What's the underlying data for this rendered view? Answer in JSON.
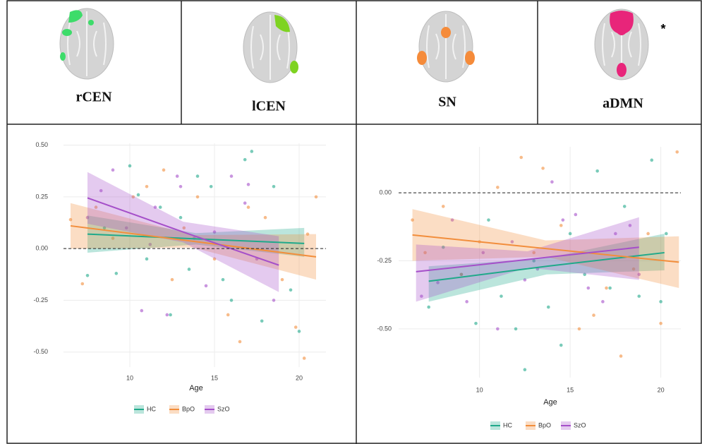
{
  "header": {
    "networks": [
      "rCEN",
      "lCEN",
      "SN",
      "aDMN"
    ],
    "note": "*"
  },
  "chart_data": [
    {
      "type": "scatter",
      "x_label": "Age",
      "xlim": [
        5.5,
        22
      ],
      "ylim": [
        -0.6,
        0.55
      ],
      "xticks": [
        10,
        15,
        20
      ],
      "yticks": [
        {
          "value": -0.5,
          "label": "-0.50"
        },
        {
          "value": -0.25,
          "label": "-0.25"
        },
        {
          "value": 0,
          "label": "0.00"
        },
        {
          "value": 0.25,
          "label": "0.25"
        },
        {
          "value": 0.5,
          "label": "0.50"
        }
      ],
      "grid": true,
      "reference_line": 0,
      "series": [
        {
          "name": "HC",
          "color": "#1fa98a",
          "x": [
            7.5,
            8.5,
            9.2,
            10,
            10.5,
            11,
            11.8,
            12.4,
            13,
            13.5,
            14,
            14.8,
            15.5,
            16,
            16.8,
            17.2,
            17.8,
            18.5,
            19.5,
            20
          ],
          "values": [
            -0.13,
            0.1,
            -0.12,
            0.4,
            0.26,
            -0.05,
            0.2,
            -0.32,
            0.15,
            -0.1,
            0.35,
            0.3,
            -0.15,
            -0.25,
            0.43,
            0.47,
            -0.35,
            0.3,
            -0.2,
            -0.4
          ],
          "fit": {
            "x": [
              7.5,
              13.9,
              20.3
            ],
            "values": [
              0.07,
              0.047,
              0.025
            ],
            "lower": [
              -0.02,
              0.02,
              -0.04
            ],
            "upper": [
              0.16,
              0.075,
              0.1
            ]
          }
        },
        {
          "name": "BpO",
          "color": "#f28e3c",
          "x": [
            6.5,
            7.2,
            8,
            9,
            10.2,
            11,
            12,
            12.5,
            13.2,
            14,
            15,
            15.8,
            16.5,
            17,
            18,
            19,
            19.8,
            20.5,
            21,
            20.3
          ],
          "values": [
            0.14,
            -0.17,
            0.2,
            0.05,
            0.25,
            0.3,
            0.38,
            -0.15,
            0.1,
            0.25,
            -0.05,
            -0.32,
            -0.45,
            0.2,
            0.15,
            -0.15,
            -0.38,
            0.07,
            0.25,
            -0.53
          ],
          "fit": {
            "x": [
              6.5,
              13.75,
              21
            ],
            "values": [
              0.11,
              0.035,
              -0.04
            ],
            "lower": [
              0.0,
              0.005,
              -0.15
            ],
            "upper": [
              0.22,
              0.065,
              0.07
            ]
          }
        },
        {
          "name": "SzO",
          "color": "#a54fc9",
          "x": [
            7.5,
            8.3,
            9,
            9.8,
            10.7,
            11.5,
            12.2,
            13,
            13.8,
            14.5,
            15,
            16,
            16.8,
            17.5,
            18.5,
            12.8,
            17,
            11.2
          ],
          "values": [
            0.15,
            0.28,
            0.38,
            0.1,
            -0.3,
            0.2,
            -0.32,
            0.3,
            0.05,
            -0.18,
            0.08,
            0.35,
            0.22,
            -0.05,
            -0.25,
            0.35,
            0.31,
            0.02
          ],
          "fit": {
            "x": [
              7.5,
              13.15,
              18.8
            ],
            "values": [
              0.245,
              0.08,
              -0.08
            ],
            "lower": [
              0.12,
              0.03,
              -0.21
            ],
            "upper": [
              0.37,
              0.13,
              0.06
            ]
          }
        }
      ]
    },
    {
      "type": "scatter",
      "x_label": "Age",
      "xlim": [
        5.5,
        22
      ],
      "ylim": [
        -0.7,
        0.2
      ],
      "xticks": [
        10,
        15,
        20
      ],
      "yticks": [
        {
          "value": -0.5,
          "label": "-0.50"
        },
        {
          "value": -0.25,
          "label": "-0.25"
        },
        {
          "value": 0,
          "label": "0.00"
        }
      ],
      "grid": true,
      "reference_line": 0,
      "series": [
        {
          "name": "HC",
          "color": "#1fa98a",
          "x": [
            7.2,
            8,
            9,
            9.8,
            10.5,
            11.2,
            12,
            12.5,
            13,
            13.8,
            14.5,
            15,
            15.8,
            16.5,
            17.2,
            18,
            18.8,
            19.5,
            20,
            20.3
          ],
          "values": [
            -0.42,
            -0.2,
            -0.3,
            -0.48,
            -0.1,
            -0.38,
            -0.5,
            -0.65,
            -0.25,
            -0.42,
            -0.56,
            -0.15,
            -0.3,
            0.08,
            -0.35,
            -0.05,
            -0.38,
            0.12,
            -0.4,
            -0.15
          ],
          "fit": {
            "x": [
              7.2,
              13.7,
              20.2
            ],
            "values": [
              -0.325,
              -0.27,
              -0.22
            ],
            "lower": [
              -0.4,
              -0.3,
              -0.285
            ],
            "upper": [
              -0.27,
              -0.24,
              -0.15
            ]
          }
        },
        {
          "name": "BpO",
          "color": "#f28e3c",
          "x": [
            6.3,
            7,
            8,
            9,
            10,
            11,
            12.3,
            13,
            13.5,
            14.5,
            15.5,
            16.3,
            17,
            17.8,
            18.5,
            19.3,
            20,
            20.9
          ],
          "values": [
            -0.1,
            -0.22,
            -0.05,
            -0.3,
            -0.18,
            0.02,
            0.13,
            -0.22,
            0.09,
            -0.12,
            -0.5,
            -0.45,
            -0.35,
            -0.6,
            -0.28,
            -0.15,
            -0.48,
            0.15
          ],
          "fit": {
            "x": [
              6.3,
              13.65,
              21
            ],
            "values": [
              -0.155,
              -0.205,
              -0.255
            ],
            "lower": [
              -0.25,
              -0.235,
              -0.35
            ],
            "upper": [
              -0.06,
              -0.175,
              -0.16
            ]
          }
        },
        {
          "name": "SzO",
          "color": "#a54fc9",
          "x": [
            6.8,
            7.7,
            8.5,
            9.3,
            10.2,
            11,
            11.8,
            12.5,
            13.2,
            14,
            14.6,
            15.3,
            16,
            16.8,
            17.5,
            18.3,
            18.8
          ],
          "values": [
            -0.38,
            -0.33,
            -0.1,
            -0.4,
            -0.22,
            -0.5,
            -0.18,
            -0.32,
            -0.28,
            0.04,
            -0.1,
            -0.08,
            -0.35,
            -0.4,
            -0.15,
            -0.12,
            -0.3
          ],
          "fit": {
            "x": [
              6.5,
              12.65,
              18.8
            ],
            "values": [
              -0.29,
              -0.245,
              -0.2
            ],
            "lower": [
              -0.4,
              -0.275,
              -0.32
            ],
            "upper": [
              -0.19,
              -0.215,
              -0.09
            ]
          }
        }
      ]
    }
  ]
}
